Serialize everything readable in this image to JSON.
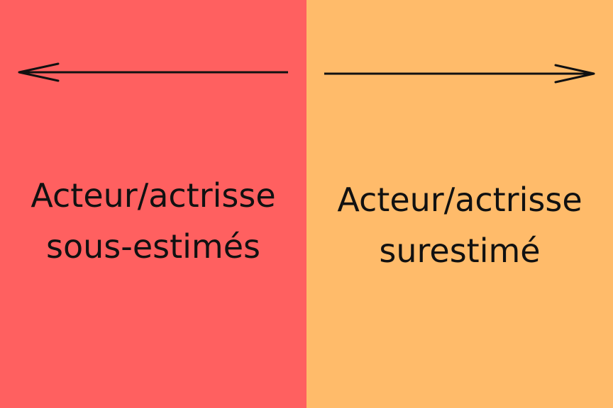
{
  "colors": {
    "left_background": "#FF6060",
    "right_background": "#FFBB6A",
    "text": "#111111",
    "arrow": "#111111"
  },
  "left_panel": {
    "arrow_icon": "left-arrow-icon",
    "label_line_1": "Acteur/actrisse",
    "label_line_2": "sous-estimés"
  },
  "right_panel": {
    "arrow_icon": "right-arrow-icon",
    "label_line_1": "Acteur/actrisse",
    "label_line_2": "surestimé"
  }
}
